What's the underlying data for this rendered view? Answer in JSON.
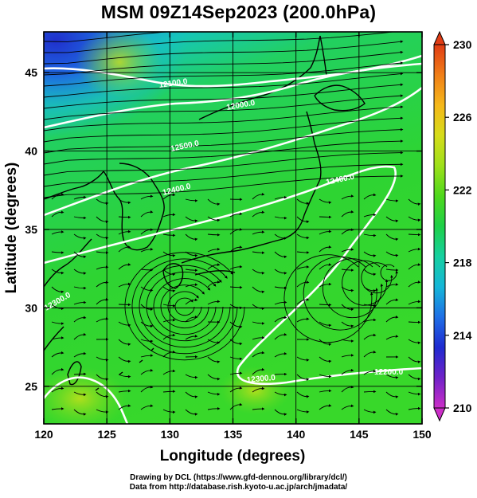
{
  "title": "MSM 09Z14Sep2023 (200.0hPa)",
  "axes": {
    "x_label": "Longitude (degrees)",
    "y_label": "Latitude  (degrees)",
    "x_ticks": [
      "120",
      "125",
      "130",
      "135",
      "140",
      "145",
      "150"
    ],
    "y_ticks": [
      "25",
      "30",
      "35",
      "40",
      "45"
    ],
    "x_range": [
      120,
      150
    ],
    "y_range": [
      22.6,
      47.6
    ]
  },
  "colorbar": {
    "ticks": [
      "230",
      "226",
      "222",
      "218",
      "214",
      "210"
    ],
    "range": [
      210,
      230
    ],
    "colors": [
      "#cc2fc8",
      "#7022c8",
      "#1f2bd0",
      "#1f6fe6",
      "#15b6d8",
      "#16d0a0",
      "#1ed048",
      "#4ed81c",
      "#9ee01a",
      "#d6dc1a",
      "#f5b81a",
      "#f07e18",
      "#e03c14"
    ]
  },
  "contours": {
    "labels": [
      "12100.0",
      "12000.0",
      "12500.0",
      "12400.0",
      "12400.0",
      "12300.0",
      "12300.0",
      "12200.0"
    ],
    "color": "#ffffff"
  },
  "credits": {
    "line1": "Drawing by DCL (https://www.gfd-dennou.org/library/dcl/)",
    "line2": "Data from http://database.rish.kyoto-u.ac.jp/arch/jmadata/"
  }
}
